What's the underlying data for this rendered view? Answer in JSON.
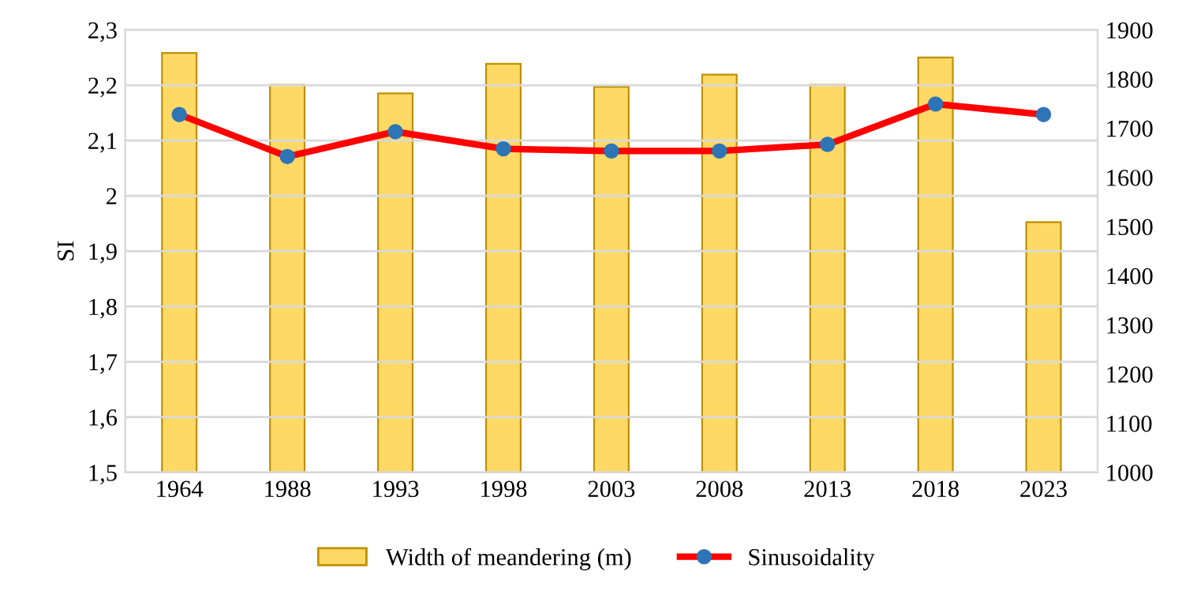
{
  "chart_data": {
    "type": "bar",
    "ylabel": "SI",
    "categories": [
      "1964",
      "1988",
      "1993",
      "1998",
      "2003",
      "2008",
      "2013",
      "2018",
      "2023"
    ],
    "series": [
      {
        "name": "Width of meandering (m)",
        "axis": "y2",
        "color": "#ffd966",
        "values": [
          1853,
          1788,
          1771,
          1831,
          1784,
          1809,
          1788,
          1844,
          1509
        ]
      },
      {
        "name": "Sinusoidality",
        "type": "line",
        "color": "#ff0000",
        "marker": "circle",
        "values": [
          2.147,
          2.071,
          2.116,
          2.085,
          2.081,
          2.081,
          2.093,
          2.166,
          2.147
        ]
      }
    ],
    "ylim": [
      1.5,
      2.3
    ],
    "yticks": [
      {
        "value": 1.5,
        "label": "1,5"
      },
      {
        "value": 1.6,
        "label": "1,6"
      },
      {
        "value": 1.7,
        "label": "1,7"
      },
      {
        "value": 1.8,
        "label": "1,8"
      },
      {
        "value": 1.9,
        "label": "1,9"
      },
      {
        "value": 2.0,
        "label": "2"
      },
      {
        "value": 2.1,
        "label": "2,1"
      },
      {
        "value": 2.2,
        "label": "2,2"
      },
      {
        "value": 2.3,
        "label": "2,3"
      }
    ],
    "y2lim": [
      1000,
      1900
    ],
    "y2ticks": [
      1000,
      1100,
      1200,
      1300,
      1400,
      1500,
      1600,
      1700,
      1800,
      1900
    ],
    "grid": "y",
    "legend": "bottom"
  }
}
